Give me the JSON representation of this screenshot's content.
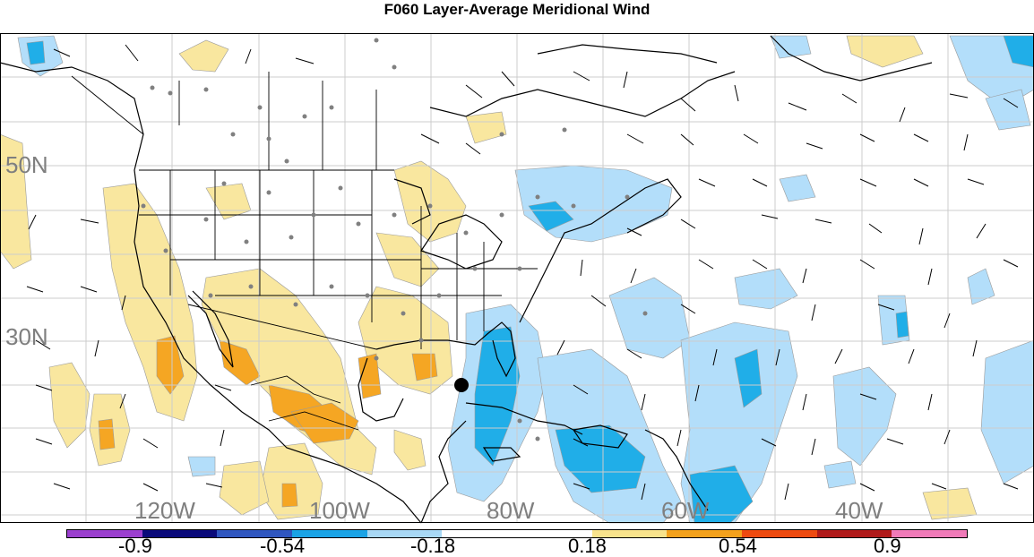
{
  "title": "F060 Layer-Average Meridional Wind",
  "lat_labels": [
    {
      "text": "50N",
      "lat": 50
    },
    {
      "text": "30N",
      "lat": 30
    }
  ],
  "lon_labels": [
    {
      "text": "120W",
      "lon": -120
    },
    {
      "text": "100W",
      "lon": -100
    },
    {
      "text": "80W",
      "lon": -80
    },
    {
      "text": "60W",
      "lon": -60
    },
    {
      "text": "40W",
      "lon": -40
    }
  ],
  "colorbar": {
    "colors": [
      "#9b3fcf",
      "#0a0a7a",
      "#2f56c0",
      "#1aa3e6",
      "#a8d8f5",
      "#ffffff",
      "#ffffff",
      "#f8e38c",
      "#f4a11c",
      "#ee4a10",
      "#b01a1a",
      "#f07ab8"
    ],
    "labels": [
      "-0.9",
      "-0.54",
      "-0.18",
      "0.18",
      "0.54",
      "0.9"
    ]
  },
  "colors": {
    "positive_light": "#f9e79f",
    "positive_mid": "#f5a623",
    "negative_light": "#b3defa",
    "negative_mid": "#20aee8",
    "grid": "#cccccc",
    "label_gray": "#7f7f7f"
  },
  "storm_marker": {
    "lat": 26,
    "lon": -83
  }
}
